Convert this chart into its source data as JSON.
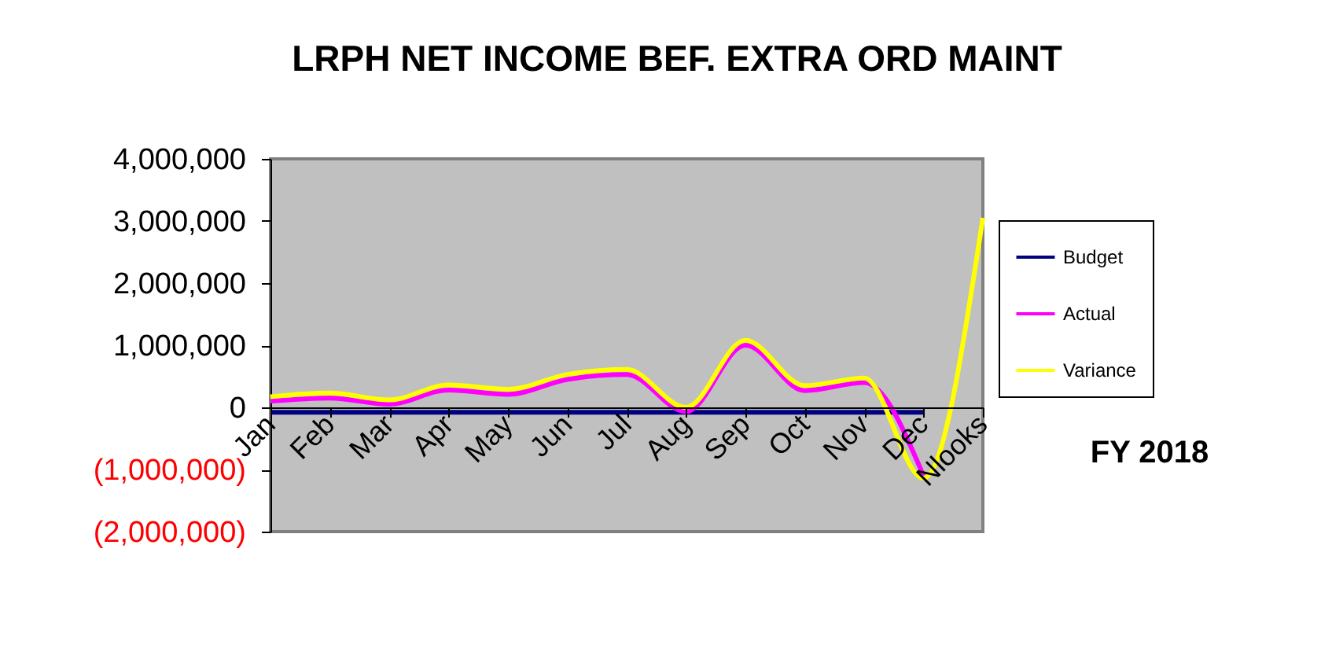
{
  "chart_data": {
    "type": "line",
    "title": "LRPH NET INCOME BEF. EXTRA ORD MAINT",
    "categories": [
      "Jan",
      "Feb",
      "Mar",
      "Apr",
      "May",
      "Jun",
      "Jul",
      "Aug",
      "Sep",
      "Oct",
      "Nov",
      "Dec",
      "Nlooks"
    ],
    "series": [
      {
        "name": "Budget",
        "color": "#000080",
        "values": [
          -80000,
          -80000,
          -80000,
          -80000,
          -80000,
          -80000,
          -80000,
          -80000,
          -80000,
          -80000,
          -80000,
          -80000,
          null
        ]
      },
      {
        "name": "Actual",
        "color": "#ff00ff",
        "values": [
          100000,
          150000,
          50000,
          280000,
          210000,
          450000,
          530000,
          -70000,
          1000000,
          270000,
          400000,
          -1100000,
          null
        ]
      },
      {
        "name": "Variance",
        "color": "#ffff00",
        "values": [
          170000,
          230000,
          120000,
          360000,
          290000,
          530000,
          610000,
          0,
          1080000,
          350000,
          470000,
          -1140000,
          3050000
        ]
      }
    ],
    "ylim": [
      -2000000,
      4000000
    ],
    "yticks": [
      {
        "value": -2000000,
        "label": "(2,000,000)"
      },
      {
        "value": -1000000,
        "label": "(1,000,000)"
      },
      {
        "value": 0,
        "label": "0"
      },
      {
        "value": 1000000,
        "label": "1,000,000"
      },
      {
        "value": 2000000,
        "label": "2,000,000"
      },
      {
        "value": 3000000,
        "label": "3,000,000"
      },
      {
        "value": 4000000,
        "label": "4,000,000"
      }
    ],
    "grid": false,
    "legend": "right",
    "marker": "none",
    "line_style": "solid",
    "annotations": [
      "FY 2018"
    ]
  }
}
